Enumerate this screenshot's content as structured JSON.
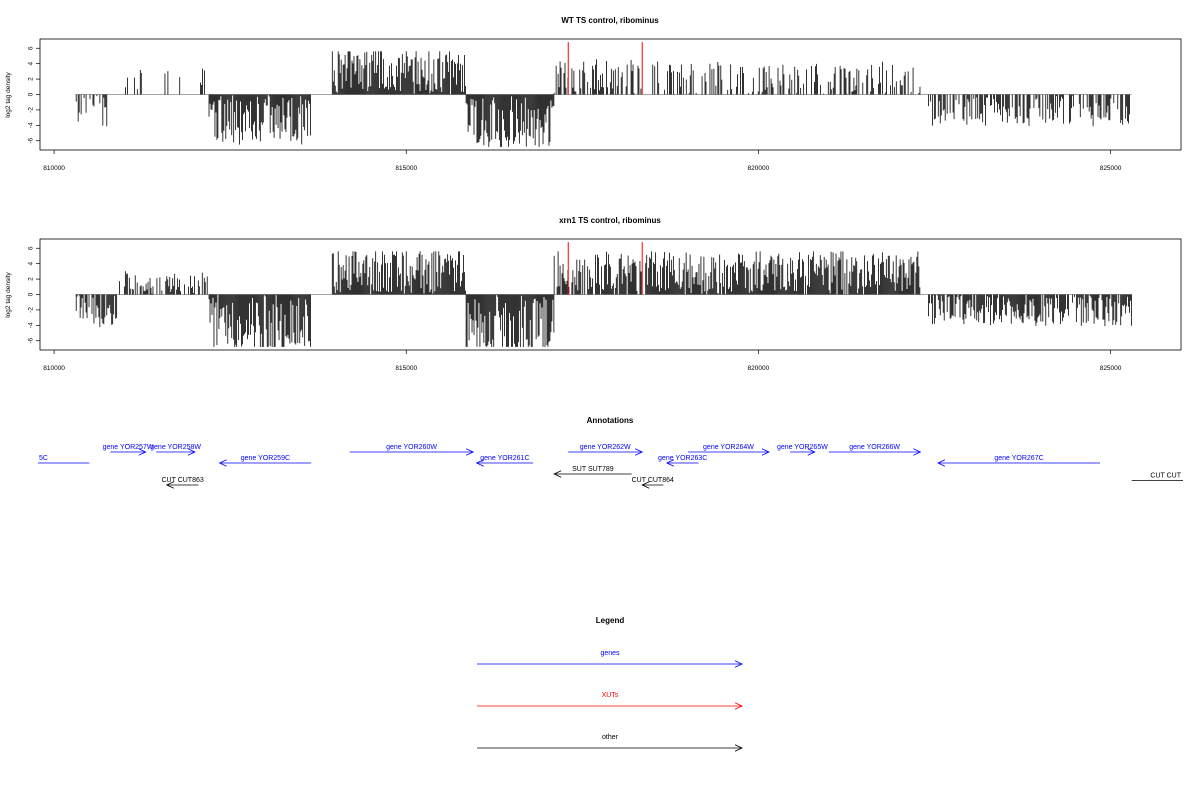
{
  "colors": {
    "genes": "#0000ff",
    "xuts": "#ff0000",
    "other": "#000000",
    "signal": "#000000",
    "baseline": "#888888"
  },
  "chart_data": [
    {
      "type": "bar",
      "title": "WT TS control, ribominus",
      "ylabel": "log2 tag density",
      "xlim": [
        809800,
        826000
      ],
      "ylim": [
        -7.2,
        7.2
      ],
      "xticks": [
        810000,
        815000,
        820000,
        825000
      ],
      "xtick_labels": [
        "810000",
        "815000",
        "820000",
        "825000"
      ],
      "yticks": [
        -6,
        -4,
        -2,
        0,
        2,
        4,
        6
      ],
      "ytick_labels": [
        "-6",
        "-4",
        "-2",
        "0",
        "2",
        "4",
        "6"
      ],
      "baseline_range": [
        810300,
        825300
      ],
      "regions": [
        {
          "start": 810300,
          "end": 810800,
          "mean": -2.2,
          "density": 0.3
        },
        {
          "start": 811000,
          "end": 812200,
          "mean": 1.7,
          "density": 0.18
        },
        {
          "start": 812200,
          "end": 813650,
          "mean": -3.0,
          "density": 1.0
        },
        {
          "start": 813950,
          "end": 815850,
          "mean": 2.8,
          "density": 1.0
        },
        {
          "start": 815850,
          "end": 817100,
          "mean": -3.4,
          "density": 1.0
        },
        {
          "start": 817100,
          "end": 818350,
          "mean": 2.2,
          "density": 0.6
        },
        {
          "start": 818500,
          "end": 822300,
          "mean": 2.0,
          "density": 0.45
        },
        {
          "start": 822400,
          "end": 825300,
          "mean": -1.9,
          "density": 0.6
        }
      ],
      "xut_marks": [
        {
          "x": 817300,
          "y": 6.8
        },
        {
          "x": 818350,
          "y": 6.8
        }
      ]
    },
    {
      "type": "bar",
      "title": "xrn1 TS control, ribominus",
      "ylabel": "log2 tag density",
      "xlim": [
        809800,
        826000
      ],
      "ylim": [
        -7.2,
        7.2
      ],
      "xticks": [
        810000,
        815000,
        820000,
        825000
      ],
      "xtick_labels": [
        "810000",
        "815000",
        "820000",
        "825000"
      ],
      "yticks": [
        -6,
        -4,
        -2,
        0,
        2,
        4,
        6
      ],
      "ytick_labels": [
        "-6",
        "-4",
        "-2",
        "0",
        "2",
        "4",
        "6"
      ],
      "baseline_range": [
        810300,
        825300
      ],
      "regions": [
        {
          "start": 810300,
          "end": 810900,
          "mean": -2.0,
          "density": 0.6
        },
        {
          "start": 810900,
          "end": 812200,
          "mean": 1.4,
          "density": 0.6
        },
        {
          "start": 812200,
          "end": 813650,
          "mean": -3.6,
          "density": 1.0
        },
        {
          "start": 813950,
          "end": 815850,
          "mean": 2.9,
          "density": 1.0
        },
        {
          "start": 815850,
          "end": 817100,
          "mean": -4.1,
          "density": 1.0
        },
        {
          "start": 817100,
          "end": 818350,
          "mean": 2.6,
          "density": 0.85
        },
        {
          "start": 818400,
          "end": 822300,
          "mean": 2.6,
          "density": 0.95
        },
        {
          "start": 822400,
          "end": 825300,
          "mean": -1.9,
          "density": 0.85
        }
      ],
      "xut_marks": [
        {
          "x": 817300,
          "y": 6.8
        },
        {
          "x": 818350,
          "y": 6.8
        }
      ]
    }
  ],
  "annotations": {
    "title": "Annotations",
    "xlim": [
      809800,
      826000
    ],
    "features": [
      {
        "label": "5C",
        "start": 810500,
        "end": 809500,
        "row": 2,
        "kind": "genes"
      },
      {
        "label": "gene YOR257W",
        "start": 810800,
        "end": 811300,
        "row": 1,
        "kind": "genes"
      },
      {
        "label": "gene YOR258W",
        "start": 811450,
        "end": 812000,
        "row": 1,
        "kind": "genes"
      },
      {
        "label": "gene YOR259C",
        "start": 813650,
        "end": 812350,
        "row": 2,
        "kind": "genes"
      },
      {
        "label": "gene YOR260W",
        "start": 814200,
        "end": 815950,
        "row": 1,
        "kind": "genes"
      },
      {
        "label": "gene YOR261C",
        "start": 816800,
        "end": 816000,
        "row": 2,
        "kind": "genes"
      },
      {
        "label": "gene YOR262W",
        "start": 817300,
        "end": 818350,
        "row": 1,
        "kind": "genes"
      },
      {
        "label": "gene YOR263C",
        "start": 819150,
        "end": 818700,
        "row": 2,
        "kind": "genes"
      },
      {
        "label": "gene YOR264W",
        "start": 819000,
        "end": 820150,
        "row": 1,
        "kind": "genes"
      },
      {
        "label": "gene YOR265W",
        "start": 820450,
        "end": 820800,
        "row": 1,
        "kind": "genes"
      },
      {
        "label": "gene YOR266W",
        "start": 821000,
        "end": 822300,
        "row": 1,
        "kind": "genes"
      },
      {
        "label": "gene YOR267C",
        "start": 824850,
        "end": 822550,
        "row": 2,
        "kind": "genes"
      },
      {
        "label": "SUT SUT789",
        "start": 818200,
        "end": 817100,
        "row": 3,
        "kind": "other"
      },
      {
        "label": "CUT CUT863",
        "start": 812050,
        "end": 811600,
        "row": 4,
        "kind": "other"
      },
      {
        "label": "CUT CUT864",
        "start": 818650,
        "end": 818350,
        "row": 4,
        "kind": "other"
      },
      {
        "label": "CUT CUT",
        "start": 825300,
        "end": 826300,
        "row": 3.6,
        "kind": "other"
      }
    ]
  },
  "legend": {
    "title": "Legend",
    "items": [
      {
        "label": "genes",
        "kind": "genes"
      },
      {
        "label": "XUTs",
        "kind": "xuts"
      },
      {
        "label": "other",
        "kind": "other"
      }
    ]
  }
}
